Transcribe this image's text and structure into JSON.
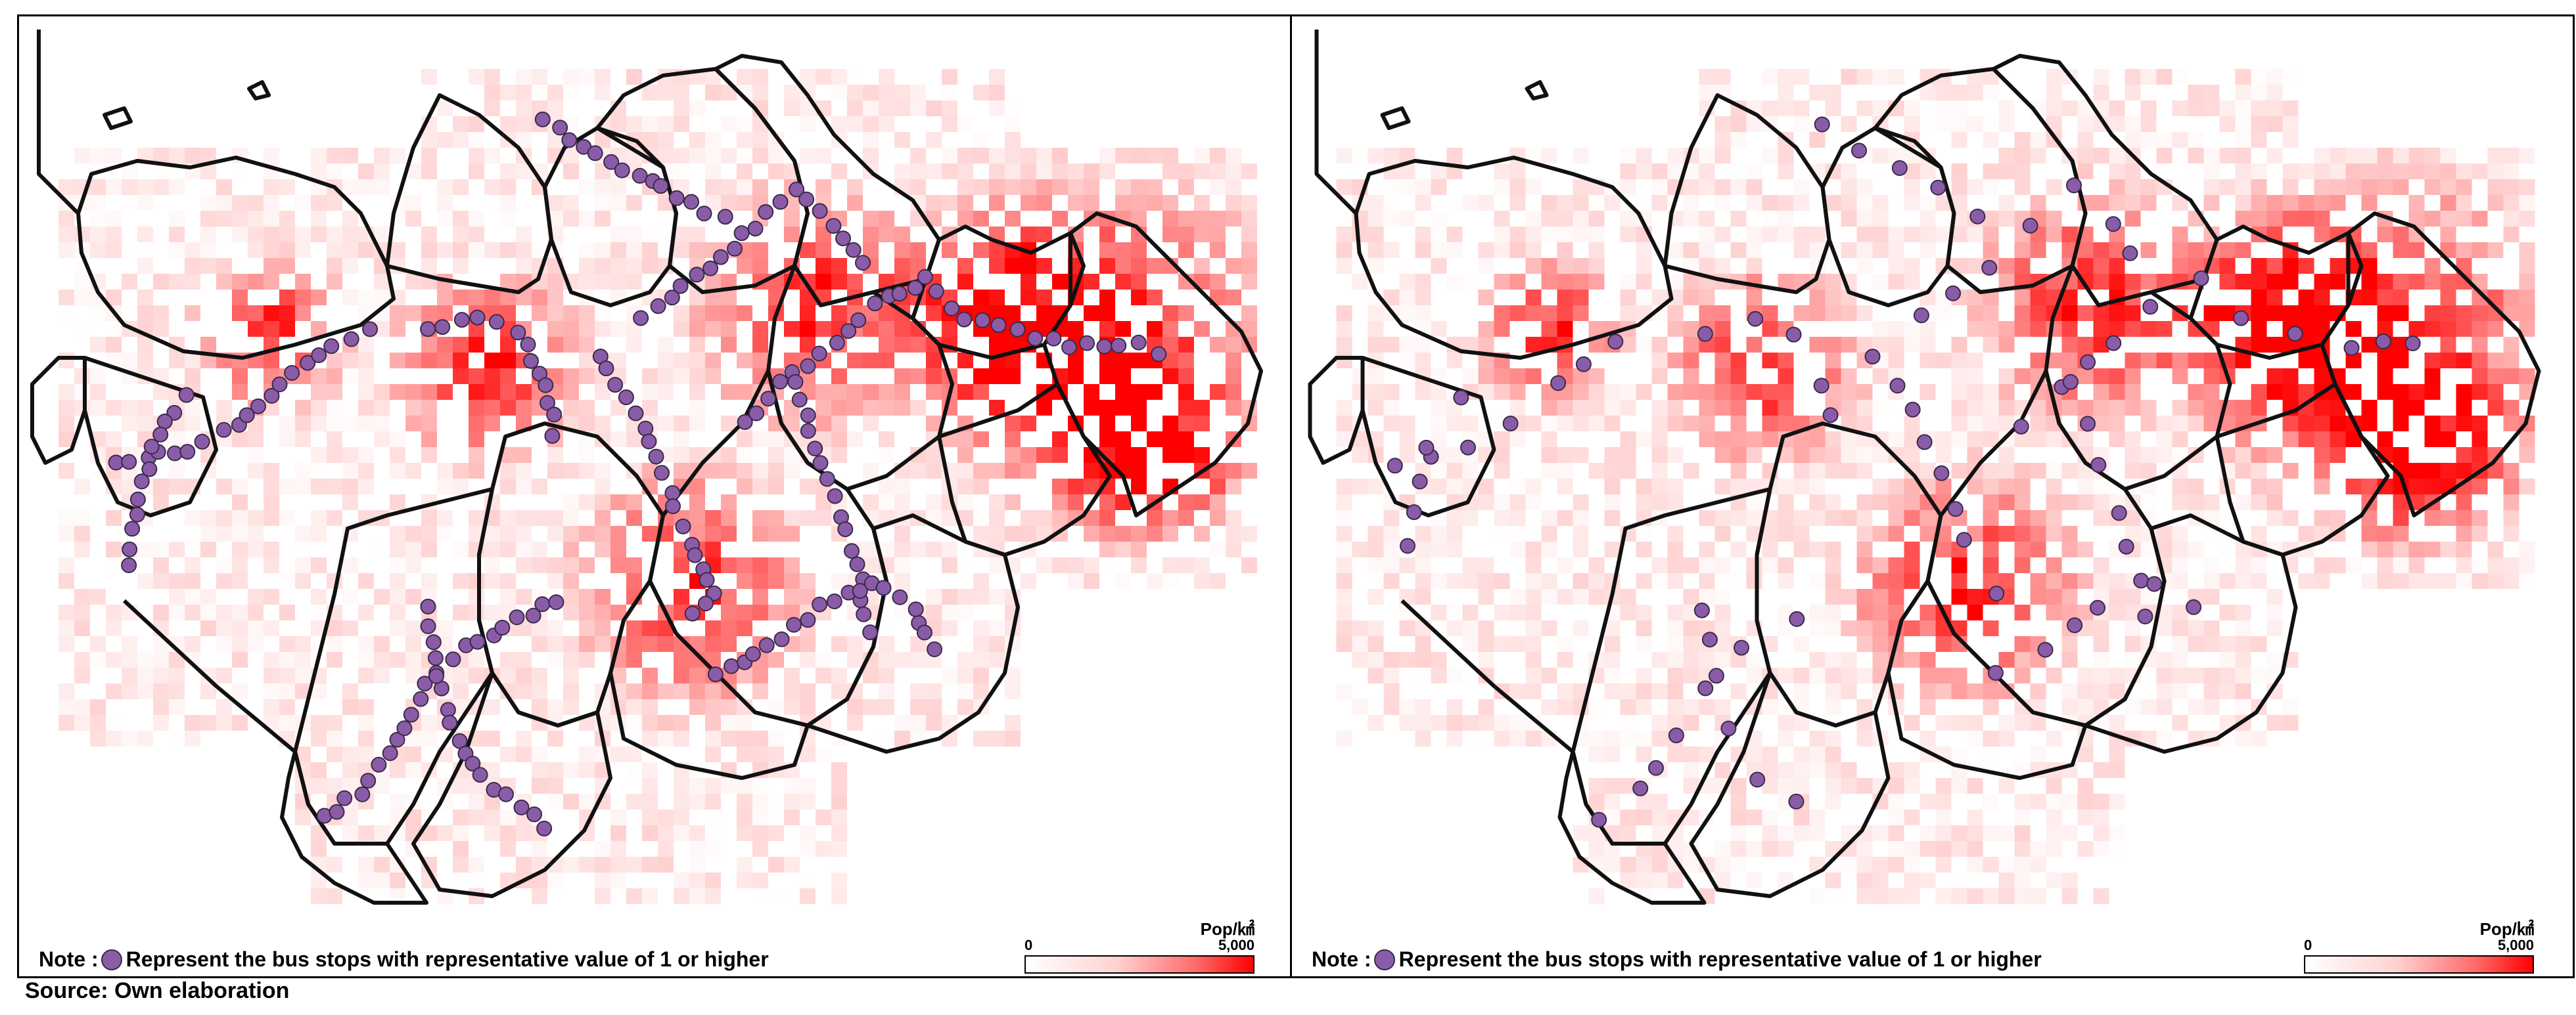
{
  "panels": [
    {
      "note_prefix": "Note :",
      "note_text": "Represent the bus stops with representative value of 1 or higher",
      "legend": {
        "unit": "Pop/㎢",
        "min": "0",
        "max": "5,000"
      },
      "density_scale_max": 5000,
      "bus_stop_color": "#8a5ca8",
      "bus_stop_density": "high"
    },
    {
      "note_prefix": "Note :",
      "note_text": "Represent the bus stops with representative value of 1 or higher",
      "legend": {
        "unit": "Pop/㎢",
        "min": "0",
        "max": "5,000"
      },
      "density_scale_max": 5000,
      "bus_stop_color": "#8a5ca8",
      "bus_stop_density": "low"
    }
  ],
  "source": "Source: Own elaboration",
  "colors": {
    "density_low": "#ffffff",
    "density_high": "#ff0000",
    "bus_stop": "#8a5ca8",
    "boundary": "#111111"
  }
}
